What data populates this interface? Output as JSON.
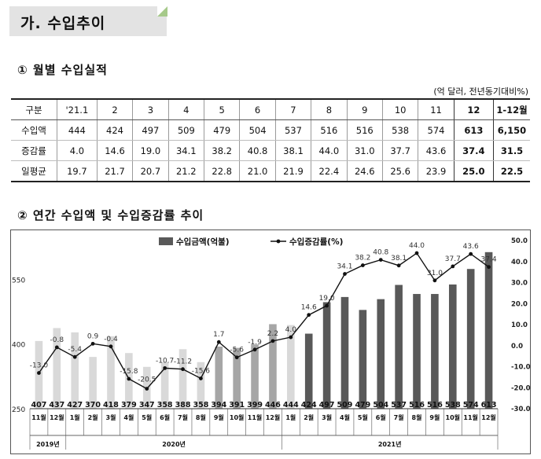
{
  "title": "가. 수입추이",
  "section1": {
    "heading": "① 월별 수입실적",
    "unit": "(억 달러, 전년동기대비%)",
    "columns": [
      "구분",
      "'21.1",
      "2",
      "3",
      "4",
      "5",
      "6",
      "7",
      "8",
      "9",
      "10",
      "11",
      "12",
      "1-12월"
    ],
    "rows": [
      {
        "label": "수입액",
        "values": [
          "444",
          "424",
          "497",
          "509",
          "479",
          "504",
          "537",
          "516",
          "516",
          "538",
          "574",
          "613",
          "6,150"
        ]
      },
      {
        "label": "증감률",
        "values": [
          "4.0",
          "14.6",
          "19.0",
          "34.1",
          "38.2",
          "40.8",
          "38.1",
          "44.0",
          "31.0",
          "37.7",
          "43.6",
          "37.4",
          "31.5"
        ]
      },
      {
        "label": "일평균",
        "values": [
          "19.7",
          "21.7",
          "20.7",
          "21.2",
          "22.8",
          "21.0",
          "21.9",
          "22.4",
          "24.6",
          "25.6",
          "23.9",
          "25.0",
          "22.5"
        ]
      }
    ]
  },
  "section2": {
    "heading": "② 연간 수입액 및 수입증감률 추이"
  },
  "chart_data": {
    "type": "bar",
    "categories": [
      "11월",
      "12월",
      "1월",
      "2월",
      "3월",
      "4월",
      "5월",
      "6월",
      "7월",
      "8월",
      "9월",
      "10월",
      "11월",
      "12월",
      "1월",
      "2월",
      "3월",
      "4월",
      "5월",
      "6월",
      "7월",
      "8월",
      "9월",
      "10월",
      "11월",
      "12월"
    ],
    "year_groups": [
      {
        "label": "2019년",
        "count": 2
      },
      {
        "label": "2020년",
        "count": 12
      },
      {
        "label": "2021년",
        "count": 12
      }
    ],
    "series": [
      {
        "name": "수입금액(억불)",
        "type": "bar",
        "axis": "left",
        "values": [
          407,
          437,
          427,
          370,
          418,
          379,
          347,
          358,
          388,
          358,
          394,
          391,
          399,
          446,
          444,
          424,
          497,
          509,
          479,
          504,
          537,
          516,
          516,
          538,
          574,
          613
        ],
        "labels": [
          "407",
          "437",
          "427",
          "370",
          "418",
          "379",
          "347",
          "358",
          "388",
          "358",
          "394",
          "391",
          "399",
          "446",
          "444",
          "424",
          "497",
          "509",
          "479",
          "504",
          "537",
          "516",
          "516",
          "538",
          "574",
          "613"
        ]
      },
      {
        "name": "수입증감률(%)",
        "type": "line",
        "axis": "right",
        "values": [
          -13.0,
          -0.8,
          -5.4,
          0.9,
          -0.4,
          -15.8,
          -20.5,
          -10.7,
          -11.2,
          -15.6,
          1.7,
          -5.6,
          -1.9,
          2.2,
          4.0,
          14.6,
          19.0,
          34.1,
          38.2,
          40.8,
          38.1,
          44.0,
          31.0,
          37.7,
          43.6,
          37.4
        ],
        "labels": [
          "-13.0",
          "-0.8",
          "-5.4",
          "0.9",
          "-0.4",
          "-15.8",
          "-20.5",
          "-10.7",
          "-11.2",
          "-15.6",
          "1.7",
          "-5.6",
          "-1.9",
          "2.2",
          "4.0",
          "14.6",
          "19.0",
          "34.1",
          "38.2",
          "40.8",
          "38.1",
          "44.0",
          "31.0",
          "37.7",
          "43.6",
          "37.4"
        ]
      }
    ],
    "bar_colors": [
      "#d9d9d9",
      "#d9d9d9",
      "#d9d9d9",
      "#d9d9d9",
      "#d9d9d9",
      "#d9d9d9",
      "#d9d9d9",
      "#d9d9d9",
      "#d9d9d9",
      "#d9d9d9",
      "#a6a6a6",
      "#a6a6a6",
      "#a6a6a6",
      "#a6a6a6",
      "#d9d9d9",
      "#595959",
      "#595959",
      "#595959",
      "#595959",
      "#595959",
      "#595959",
      "#595959",
      "#595959",
      "#595959",
      "#595959",
      "#595959"
    ],
    "left_axis": {
      "ticks": [
        "250",
        "400",
        "550"
      ],
      "values": [
        250,
        400,
        550
      ],
      "min": 250,
      "max": 640
    },
    "right_axis": {
      "ticks": [
        "50.0",
        "40.0",
        "30.0",
        "20.0",
        "10.0",
        "0.0",
        "-10.0",
        "-20.0",
        "-30.0"
      ],
      "min": -30,
      "max": 50
    },
    "legend_position": "top-right",
    "grid": false
  }
}
